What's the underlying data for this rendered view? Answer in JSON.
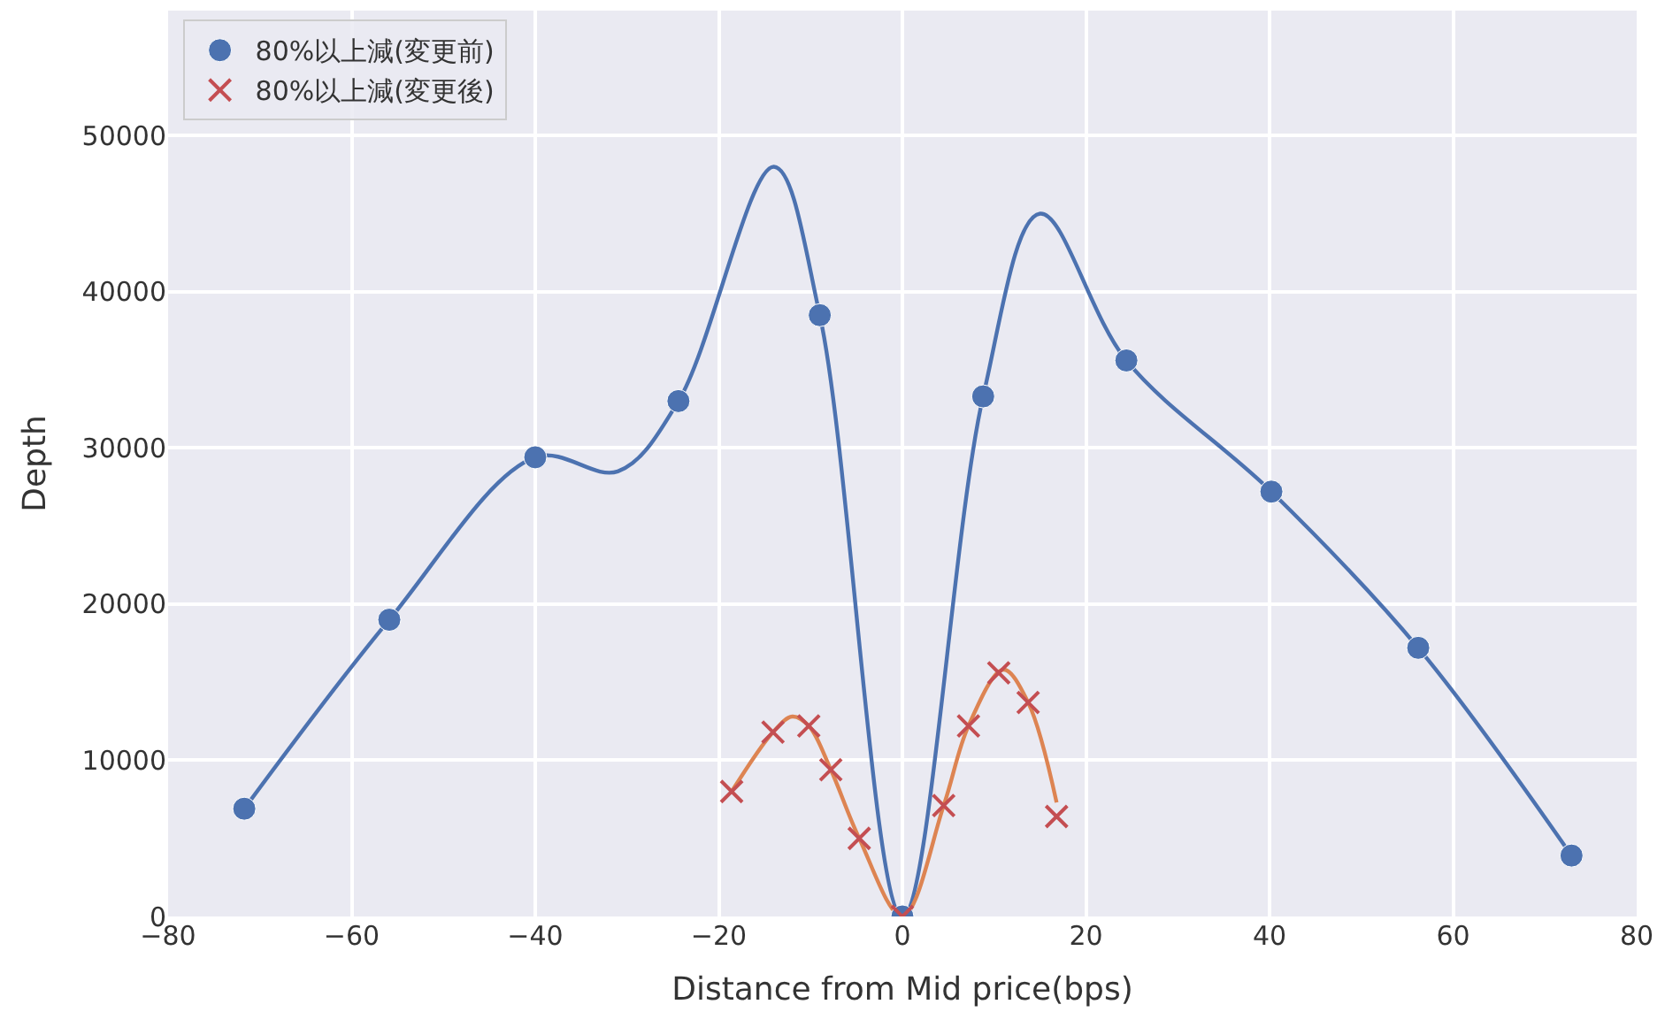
{
  "chart_data": {
    "type": "scatter",
    "xlabel": "Distance from Mid price(bps)",
    "ylabel": "Depth",
    "xlim": [
      -80,
      80
    ],
    "xticks": [
      {
        "value": -80,
        "label": "−80"
      },
      {
        "value": -60,
        "label": "−60"
      },
      {
        "value": -40,
        "label": "−40"
      },
      {
        "value": -20,
        "label": "−20"
      },
      0,
      20,
      40,
      60,
      80
    ],
    "ylim": [
      0,
      58000
    ],
    "yticks": [
      0,
      10000,
      20000,
      30000,
      40000,
      50000
    ],
    "grid": true,
    "legend": "top left",
    "series": [
      {
        "type": "line",
        "color": "#4c72b0",
        "line_style": "solid",
        "x": [
          -71.7,
          -55.9,
          -40,
          -31,
          -24.4,
          -14,
          -9,
          0,
          8.8,
          15,
          24.4,
          40.2,
          56.2,
          72.9
        ],
        "values": [
          6900,
          19000,
          29400,
          28500,
          33000,
          48000,
          38500,
          0,
          33300,
          45000,
          35600,
          27200,
          17200,
          3900
        ]
      },
      {
        "type": "line",
        "color": "#dd8452",
        "line_style": "solid",
        "x": [
          -18.6,
          -14.1,
          -12,
          -10.2,
          -7.8,
          -4.7,
          0,
          4.5,
          7.2,
          11,
          13.7,
          16.8
        ],
        "values": [
          8000,
          11800,
          12800,
          12200,
          9400,
          5000,
          0,
          7100,
          12200,
          15800,
          13700,
          7300
        ]
      },
      {
        "name": "80%以上減(変更前)",
        "color": "#4c72b0",
        "marker": "circle",
        "x": [
          -71.7,
          -55.9,
          -40,
          -24.4,
          -9,
          0,
          8.8,
          24.4,
          40.2,
          56.2,
          72.9
        ],
        "values": [
          6900,
          19000,
          29400,
          33000,
          38500,
          0,
          33300,
          35600,
          27200,
          17200,
          3900
        ]
      },
      {
        "name": "80%以上減(変更後)",
        "color": "#c44e52",
        "marker": "cross",
        "x": [
          -18.6,
          -14.1,
          -10.2,
          -7.8,
          -4.7,
          0,
          4.5,
          7.2,
          10.5,
          13.7,
          16.8
        ],
        "values": [
          8000,
          11800,
          12200,
          9400,
          5000,
          0,
          7100,
          12200,
          15600,
          13700,
          6400
        ]
      }
    ]
  }
}
